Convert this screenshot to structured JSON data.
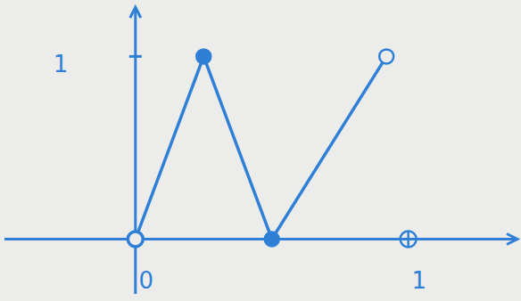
{
  "chart_data": {
    "type": "line",
    "color": "#2f7fd6",
    "xlim": [
      -0.48,
      1.4
    ],
    "ylim": [
      -0.3,
      1.27
    ],
    "xticks": [
      0,
      1
    ],
    "yticks": [
      1
    ],
    "grid": false,
    "series": [
      {
        "type": "line",
        "marker": "none",
        "x": [
          0,
          0.25,
          0.5,
          0.92
        ],
        "values": [
          0,
          1,
          0,
          1
        ]
      },
      {
        "type": "scatter",
        "marker": "filled",
        "x": [
          0.25,
          0.5
        ],
        "values": [
          1,
          0
        ]
      },
      {
        "type": "scatter",
        "marker": "open",
        "x": [
          0,
          0.92
        ],
        "values": [
          0,
          1
        ]
      }
    ]
  }
}
